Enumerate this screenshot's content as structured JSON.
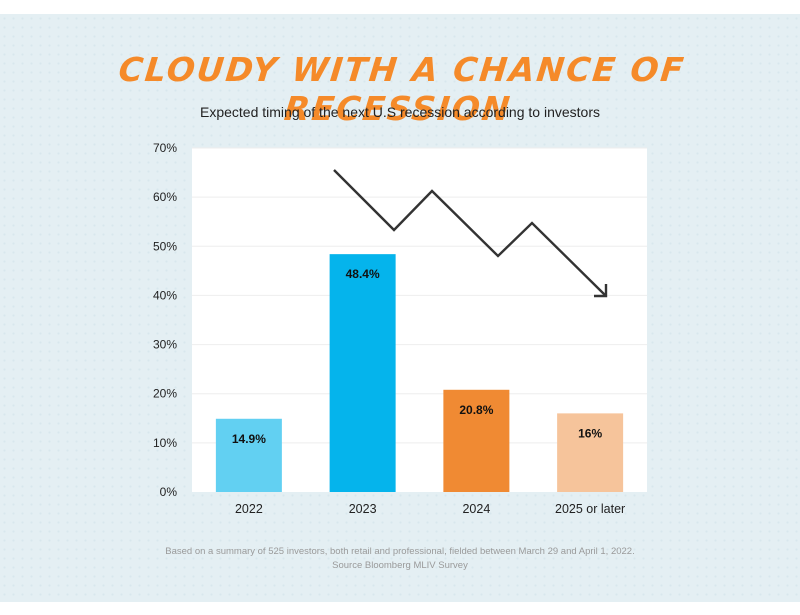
{
  "title": "Cloudy with a chance of recession",
  "subtitle": "Expected timing of the next U.S recession according to investors",
  "footnote_line1": "Based on a summary of 525 investors, both retail and professional, fielded between March 29 and April 1, 2022.",
  "footnote_line2": "Source Bloomberg MLIV Survey",
  "chart_data": {
    "type": "bar",
    "categories": [
      "2022",
      "2023",
      "2024",
      "2025 or later"
    ],
    "values": [
      14.9,
      48.4,
      20.8,
      16
    ],
    "data_labels": [
      "14.9%",
      "48.4%",
      "20.8%",
      "16%"
    ],
    "bar_colors": [
      "#62d0f2",
      "#05b4ec",
      "#f08a33",
      "#f6c49b"
    ],
    "ylim": [
      0,
      70
    ],
    "yticks": [
      0,
      10,
      20,
      30,
      40,
      50,
      60,
      70
    ],
    "ytick_labels": [
      "0%",
      "10%",
      "20%",
      "30%",
      "40%",
      "50%",
      "60%",
      "70%"
    ],
    "xlabel": "",
    "ylabel": "",
    "grid": true,
    "decoration": "zigzag-down-arrow"
  }
}
